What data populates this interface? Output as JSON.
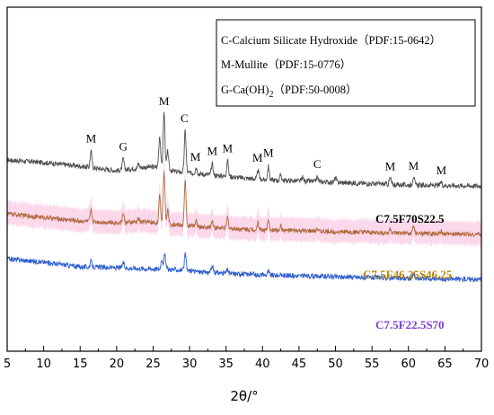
{
  "chart_data": {
    "type": "line",
    "xlabel": "2θ/°",
    "xlim": [
      5,
      70
    ],
    "x_ticks": [
      "5",
      "10",
      "15",
      "20",
      "25",
      "30",
      "35",
      "40",
      "45",
      "50",
      "55",
      "60",
      "65",
      "70"
    ],
    "legend": {
      "placement": "top-right",
      "entries": [
        {
          "text": "C-Calcium Silicate Hydroxide（PDF:15-0642）"
        },
        {
          "text": "M-Mullite（PDF:15-0776）"
        },
        {
          "text_main": "G-Ca(OH)",
          "text_sub": "2",
          "text_rest": "（PDF:50-0008）"
        }
      ]
    },
    "peak_labels": [
      {
        "text": "M",
        "x": 16.5
      },
      {
        "text": "G",
        "x": 20.9
      },
      {
        "text": "M",
        "x": 26.5
      },
      {
        "text": "C",
        "x": 29.3
      },
      {
        "text": "M",
        "x": 30.8
      },
      {
        "text": "M",
        "x": 33.1
      },
      {
        "text": "M",
        "x": 35.2
      },
      {
        "text": "M",
        "x": 39.3
      },
      {
        "text": "M",
        "x": 40.8
      },
      {
        "text": "C",
        "x": 47.5
      },
      {
        "text": "M",
        "x": 57.5
      },
      {
        "text": "M",
        "x": 60.7
      },
      {
        "text": "M",
        "x": 64.5
      }
    ],
    "series": [
      {
        "name": "C7.5F70S22.5",
        "color": "#505050",
        "baseline": [
          [
            5,
            0.8
          ],
          [
            10,
            0.77
          ],
          [
            15,
            0.73
          ],
          [
            20,
            0.68
          ],
          [
            24,
            0.72
          ],
          [
            26,
            0.72
          ],
          [
            28,
            0.67
          ],
          [
            32,
            0.64
          ],
          [
            40,
            0.58
          ],
          [
            50,
            0.55
          ],
          [
            60,
            0.52
          ],
          [
            70,
            0.51
          ]
        ],
        "peaks": [
          [
            16.5,
            0.18
          ],
          [
            20.9,
            0.12
          ],
          [
            23.0,
            0.05
          ],
          [
            25.9,
            0.35
          ],
          [
            26.5,
            0.62
          ],
          [
            27.0,
            0.2
          ],
          [
            29.4,
            0.47
          ],
          [
            30.9,
            0.07
          ],
          [
            33.1,
            0.12
          ],
          [
            35.2,
            0.18
          ],
          [
            39.4,
            0.1
          ],
          [
            40.8,
            0.15
          ],
          [
            42.5,
            0.06
          ],
          [
            45.5,
            0.04
          ],
          [
            47.5,
            0.05
          ],
          [
            50.0,
            0.05
          ],
          [
            57.5,
            0.07
          ],
          [
            60.7,
            0.1
          ],
          [
            64.5,
            0.04
          ]
        ],
        "noise": 0.028
      },
      {
        "name": "C7.5F46.25S46.25",
        "color": "#b06a40",
        "baseline": [
          [
            5,
            0.82
          ],
          [
            10,
            0.78
          ],
          [
            15,
            0.74
          ],
          [
            20,
            0.72
          ],
          [
            24,
            0.73
          ],
          [
            28,
            0.7
          ],
          [
            32,
            0.67
          ],
          [
            40,
            0.64
          ],
          [
            50,
            0.62
          ],
          [
            60,
            0.6
          ],
          [
            70,
            0.59
          ]
        ],
        "peaks": [
          [
            16.5,
            0.12
          ],
          [
            20.9,
            0.1
          ],
          [
            23.0,
            0.04
          ],
          [
            25.9,
            0.3
          ],
          [
            26.5,
            0.58
          ],
          [
            27.0,
            0.15
          ],
          [
            29.4,
            0.49
          ],
          [
            30.9,
            0.06
          ],
          [
            33.1,
            0.08
          ],
          [
            35.2,
            0.12
          ],
          [
            39.4,
            0.08
          ],
          [
            40.8,
            0.1
          ],
          [
            42.5,
            0.05
          ],
          [
            47.5,
            0.04
          ],
          [
            57.5,
            0.05
          ],
          [
            60.7,
            0.08
          ],
          [
            64.5,
            0.03
          ]
        ],
        "noise": 0.026
      },
      {
        "name": "C7.5F22.5S70",
        "color": "#2f5fd0",
        "baseline": [
          [
            5,
            0.84
          ],
          [
            10,
            0.8
          ],
          [
            15,
            0.75
          ],
          [
            20,
            0.74
          ],
          [
            24,
            0.73
          ],
          [
            28,
            0.72
          ],
          [
            32,
            0.69
          ],
          [
            40,
            0.66
          ],
          [
            50,
            0.64
          ],
          [
            60,
            0.62
          ],
          [
            70,
            0.61
          ]
        ],
        "peaks": [
          [
            16.5,
            0.06
          ],
          [
            20.9,
            0.06
          ],
          [
            26.2,
            0.12
          ],
          [
            26.6,
            0.16
          ],
          [
            29.4,
            0.18
          ],
          [
            33.1,
            0.07
          ],
          [
            35.2,
            0.04
          ],
          [
            40.8,
            0.04
          ],
          [
            60.7,
            0.05
          ]
        ],
        "noise": 0.028
      }
    ]
  }
}
